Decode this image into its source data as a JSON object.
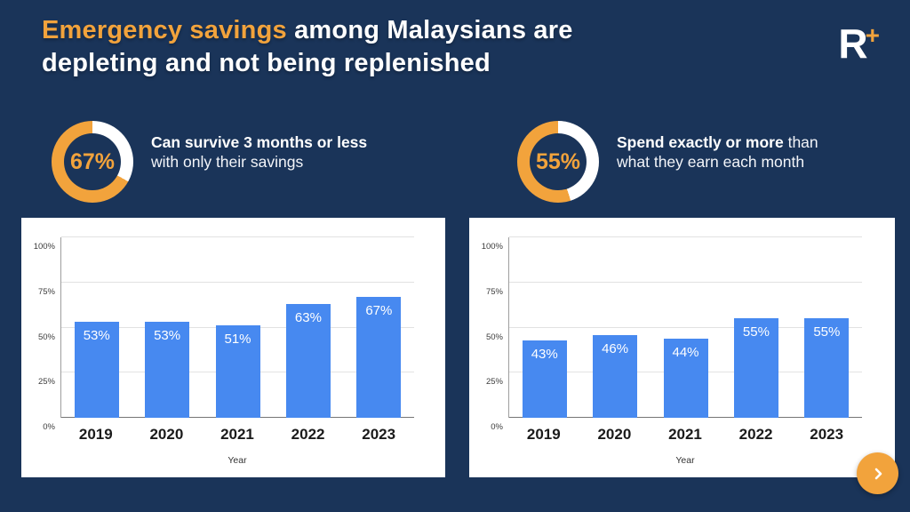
{
  "colors": {
    "background": "#1a3459",
    "accent_orange": "#f2a33c",
    "bar_blue": "#4789f0",
    "card_white": "#ffffff"
  },
  "title": {
    "highlight": "Emergency savings",
    "rest": " among Malaysians are depleting and not being replenished"
  },
  "logo": {
    "letter": "R",
    "plus": "+"
  },
  "stats": [
    {
      "value": "67%",
      "pct": 67,
      "text_bold": "Can survive 3 months or less",
      "text_regular": " with only their savings"
    },
    {
      "value": "55%",
      "pct": 55,
      "text_bold": "Spend exactly or more",
      "text_regular": " than what they earn each month"
    }
  ],
  "chart_data": [
    {
      "type": "bar",
      "title": "",
      "categories": [
        "2019",
        "2020",
        "2021",
        "2022",
        "2023"
      ],
      "values": [
        53,
        53,
        51,
        63,
        67
      ],
      "labels": [
        "53%",
        "53%",
        "51%",
        "63%",
        "67%"
      ],
      "xlabel": "Year",
      "ylabel": "",
      "ylim": [
        0,
        100
      ],
      "yticks": [
        "0%",
        "25%",
        "50%",
        "75%",
        "100%"
      ],
      "grid": true,
      "legend": "none",
      "bar_color": "#4789f0",
      "label_color": "#ffffff"
    },
    {
      "type": "bar",
      "title": "",
      "categories": [
        "2019",
        "2020",
        "2021",
        "2022",
        "2023"
      ],
      "values": [
        43,
        46,
        44,
        55,
        55
      ],
      "labels": [
        "43%",
        "46%",
        "44%",
        "55%",
        "55%"
      ],
      "xlabel": "Year",
      "ylabel": "",
      "ylim": [
        0,
        100
      ],
      "yticks": [
        "0%",
        "25%",
        "50%",
        "75%",
        "100%"
      ],
      "grid": true,
      "legend": "none",
      "bar_color": "#4789f0",
      "label_color": "#ffffff"
    }
  ],
  "nav": {
    "next": "next"
  }
}
